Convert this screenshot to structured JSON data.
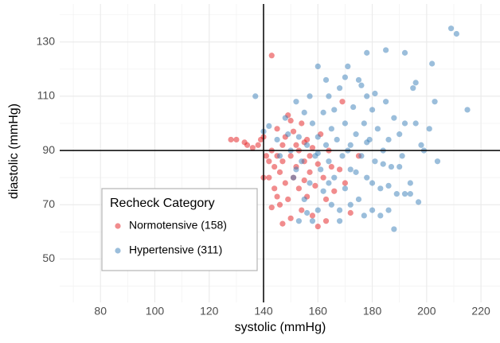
{
  "chart_data": {
    "type": "scatter",
    "x_label": "systolic (mmHg)",
    "y_label": "diastolic (mmHg)",
    "legend_title": "Recheck Category",
    "legend_position": "bottom-left",
    "grid": true,
    "xlim": [
      65,
      227
    ],
    "ylim": [
      34,
      144
    ],
    "xticks": [
      80,
      100,
      120,
      140,
      160,
      180,
      200,
      220
    ],
    "yticks": [
      50,
      70,
      90,
      110,
      130
    ],
    "vline": 140,
    "hline": 90,
    "series": [
      {
        "name": "Normotensive (158)",
        "color": "#e41a1c",
        "x": [
          128,
          130,
          133,
          134,
          136,
          138,
          139,
          140,
          141,
          142,
          142,
          143,
          143,
          144,
          144,
          145,
          145,
          145,
          146,
          146,
          147,
          147,
          148,
          148,
          149,
          149,
          150,
          150,
          151,
          151,
          152,
          152,
          153,
          153,
          154,
          154,
          155,
          155,
          156,
          156,
          157,
          157,
          158,
          158,
          159,
          160,
          160,
          161,
          162,
          163,
          164,
          165,
          166,
          168,
          169,
          170,
          172,
          175,
          140,
          143,
          147,
          150,
          155,
          163
        ],
        "values": [
          94,
          94,
          93,
          92,
          91,
          92,
          94,
          95,
          88,
          86,
          80,
          125,
          90,
          84,
          76,
          98,
          88,
          73,
          82,
          70,
          92,
          86,
          78,
          95,
          103,
          72,
          88,
          65,
          80,
          97,
          84,
          92,
          76,
          90,
          100,
          68,
          86,
          79,
          94,
          73,
          82,
          88,
          66,
          91,
          77,
          85,
          62,
          96,
          80,
          72,
          90,
          84,
          75,
          83,
          108,
          78,
          67,
          88,
          80,
          69,
          63,
          101,
          93,
          64
        ]
      },
      {
        "name": "Hypertensive (311)",
        "color": "#377eb8",
        "x": [
          137,
          140,
          142,
          145,
          146,
          148,
          150,
          151,
          152,
          153,
          154,
          155,
          155,
          156,
          157,
          158,
          158,
          159,
          160,
          160,
          161,
          162,
          162,
          163,
          164,
          164,
          165,
          165,
          166,
          167,
          168,
          168,
          169,
          170,
          170,
          171,
          172,
          172,
          173,
          174,
          175,
          175,
          176,
          177,
          178,
          178,
          179,
          180,
          180,
          181,
          182,
          183,
          184,
          185,
          185,
          186,
          187,
          188,
          188,
          189,
          190,
          191,
          192,
          192,
          194,
          195,
          196,
          197,
          198,
          199,
          201,
          202,
          203,
          204,
          209,
          211,
          215,
          194,
          186,
          183,
          177,
          168,
          160,
          153,
          157,
          163,
          170,
          176,
          181,
          166,
          149,
          152,
          160,
          171,
          178,
          184,
          190,
          172,
          180,
          156,
          164,
          174,
          186,
          178,
          196,
          192
        ],
        "values": [
          110,
          97,
          99,
          94,
          88,
          102,
          90,
          80,
          108,
          95,
          86,
          104,
          72,
          92,
          78,
          100,
          64,
          88,
          121,
          95,
          83,
          104,
          75,
          92,
          86,
          110,
          98,
          70,
          80,
          94,
          113,
          64,
          88,
          100,
          76,
          121,
          92,
          83,
          106,
          96,
          72,
          116,
          88,
          100,
          80,
          110,
          94,
          68,
          105,
          86,
          98,
          76,
          90,
          127,
          108,
          94,
          84,
          61,
          102,
          74,
          96,
          88,
          126,
          100,
          78,
          113,
          115,
          71,
          92,
          90,
          98,
          122,
          108,
          86,
          135,
          133,
          105,
          74,
          68,
          66,
          66,
          68,
          68,
          64,
          110,
          116,
          117,
          114,
          111,
          105,
          96,
          83,
          89,
          90,
          93,
          85,
          84,
          70,
          78,
          67,
          78,
          82,
          77,
          126,
          100,
          74
        ]
      }
    ]
  }
}
